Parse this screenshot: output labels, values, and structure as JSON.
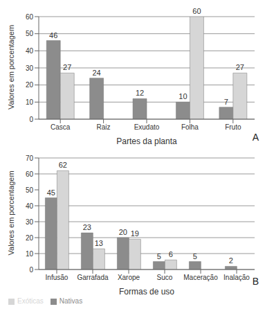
{
  "chart_data": [
    {
      "type": "bar",
      "annotation": "A",
      "x_label": "Partes da planta",
      "y_label": "Valores em porcentagem",
      "categories": [
        "Casca",
        "Raiz",
        "Exudato",
        "Folha",
        "Fruto"
      ],
      "series": [
        {
          "name": "Nativas",
          "color": "#8c8c8c",
          "values": [
            46,
            24,
            12,
            10,
            7
          ]
        },
        {
          "name": "Exóticas",
          "color": "#d6d6d6",
          "values": [
            27,
            null,
            null,
            60,
            27
          ]
        }
      ],
      "ylim": [
        0,
        60
      ],
      "yticks": [
        0,
        10,
        20,
        30,
        40,
        50,
        60
      ],
      "grid": true,
      "data_labels": true
    },
    {
      "type": "bar",
      "annotation": "B",
      "x_label": "Formas de uso",
      "y_label": "Valores em porcentagem",
      "categories": [
        "Infusão",
        "Garrafada",
        "Xarope",
        "Suco",
        "Maceração",
        "Inalação"
      ],
      "series": [
        {
          "name": "Nativas",
          "color": "#8c8c8c",
          "values": [
            45,
            23,
            20,
            5,
            5,
            2
          ]
        },
        {
          "name": "Exóticas",
          "color": "#d6d6d6",
          "values": [
            62,
            13,
            19,
            6,
            null,
            null
          ]
        }
      ],
      "ylim": [
        0,
        70
      ],
      "yticks": [
        0,
        10,
        20,
        30,
        40,
        50,
        60,
        70
      ],
      "grid": true,
      "data_labels": true,
      "legend": "bottom left"
    }
  ]
}
